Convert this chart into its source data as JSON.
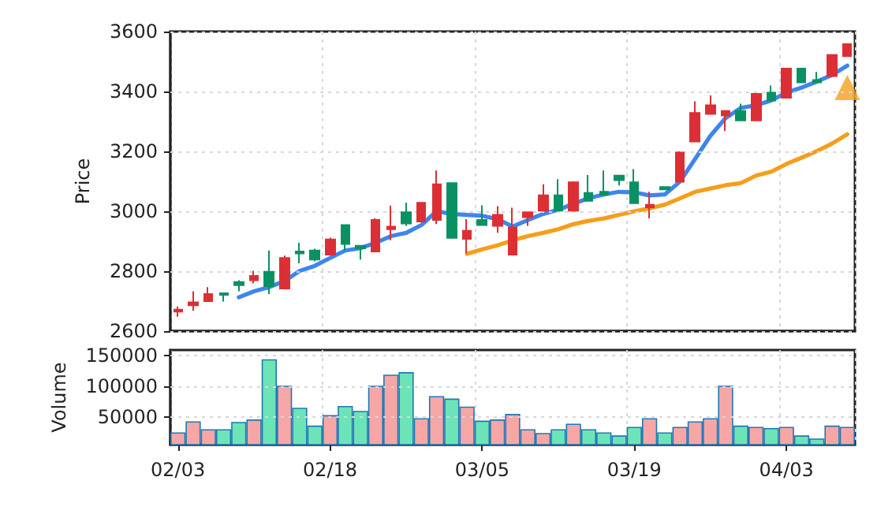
{
  "chart_data": [
    {
      "type": "candlestick",
      "ylabel": "Price",
      "ylim": [
        2600,
        3600
      ],
      "yticks": [
        2600,
        2800,
        3000,
        3200,
        3400,
        3600
      ],
      "grid": true,
      "tick_labels": "y",
      "categories": [
        null,
        null,
        null,
        null,
        null,
        null,
        null,
        null,
        null,
        null,
        null,
        null,
        null,
        null,
        null,
        null,
        null,
        null,
        null,
        null,
        null,
        null,
        null,
        null,
        null,
        null,
        null,
        null,
        null,
        null,
        null,
        null,
        null,
        null,
        null,
        null,
        null,
        null,
        null,
        null,
        null,
        null,
        null,
        null,
        null
      ],
      "ohlc": [
        [
          2672,
          2682,
          2648,
          2665
        ],
        [
          2696,
          2733,
          2668,
          2686
        ],
        [
          2724,
          2747,
          2699,
          2700
        ],
        [
          2721,
          2727,
          2699,
          2726
        ],
        [
          2753,
          2770,
          2733,
          2764
        ],
        [
          2784,
          2801,
          2759,
          2770
        ],
        [
          2750,
          2869,
          2724,
          2798
        ],
        [
          2844,
          2852,
          2742,
          2742
        ],
        [
          2859,
          2895,
          2826,
          2866
        ],
        [
          2839,
          2875,
          2833,
          2869
        ],
        [
          2906,
          2912,
          2855,
          2855
        ],
        [
          2891,
          2954,
          2869,
          2954
        ],
        [
          2876,
          2885,
          2839,
          2885
        ],
        [
          2971,
          2977,
          2866,
          2866
        ],
        [
          2949,
          3019,
          2903,
          2940
        ],
        [
          2959,
          3029,
          2951,
          2997
        ],
        [
          3028,
          3030,
          2966,
          2966
        ],
        [
          3090,
          3136,
          2957,
          2971
        ],
        [
          2911,
          3094,
          2911,
          3094
        ],
        [
          2935,
          2974,
          2860,
          2908
        ],
        [
          2954,
          3020,
          2954,
          2971
        ],
        [
          2988,
          3017,
          2928,
          2951
        ],
        [
          2946,
          3012,
          2855,
          2855
        ],
        [
          2997,
          2997,
          2951,
          2980
        ],
        [
          3053,
          3090,
          3002,
          3002
        ],
        [
          3002,
          3107,
          3002,
          3053
        ],
        [
          3097,
          3100,
          3002,
          3002
        ],
        [
          3035,
          3121,
          3035,
          3061
        ],
        [
          3055,
          3136,
          3055,
          3065
        ],
        [
          3104,
          3119,
          3086,
          3119
        ],
        [
          3027,
          3141,
          3027,
          3097
        ],
        [
          3022,
          3065,
          2976,
          3013
        ],
        [
          3073,
          3081,
          3073,
          3081
        ],
        [
          3196,
          3200,
          3099,
          3099
        ],
        [
          3328,
          3367,
          3233,
          3233
        ],
        [
          3354,
          3387,
          3325,
          3325
        ],
        [
          3335,
          3335,
          3268,
          3320
        ],
        [
          3303,
          3359,
          3303,
          3335
        ],
        [
          3392,
          3392,
          3303,
          3303
        ],
        [
          3370,
          3420,
          3370,
          3396
        ],
        [
          3476,
          3476,
          3379,
          3379
        ],
        [
          3430,
          3476,
          3430,
          3476
        ],
        [
          3430,
          3465,
          3430,
          3438
        ],
        [
          3522,
          3522,
          3451,
          3451
        ],
        [
          3558,
          3558,
          3518,
          3518
        ]
      ],
      "colors": [
        "#dc2f35",
        "#dc2f35",
        "#dc2f35",
        "#0a9163",
        "#0a9163",
        "#dc2f35",
        "#0a9163",
        "#dc2f35",
        "#0a9163",
        "#0a9163",
        "#dc2f35",
        "#0a9163",
        "#0a9163",
        "#dc2f35",
        "#dc2f35",
        "#0a9163",
        "#dc2f35",
        "#dc2f35",
        "#0a9163",
        "#dc2f35",
        "#0a9163",
        "#dc2f35",
        "#dc2f35",
        "#dc2f35",
        "#dc2f35",
        "#0a9163",
        "#dc2f35",
        "#0a9163",
        "#0a9163",
        "#0a9163",
        "#0a9163",
        "#dc2f35",
        "#0a9163",
        "#dc2f35",
        "#dc2f35",
        "#dc2f35",
        "#dc2f35",
        "#0a9163",
        "#dc2f35",
        "#0a9163",
        "#dc2f35",
        "#0a9163",
        "#0a9163",
        "#dc2f35",
        "#dc2f35"
      ],
      "series": [
        {
          "type": "line",
          "color": "#3d85f0",
          "values": [
            null,
            null,
            null,
            null,
            2713,
            2733,
            2747,
            2767,
            2801,
            2818,
            2844,
            2869,
            2877,
            2895,
            2917,
            2928,
            2954,
            3000,
            2991,
            2988,
            2985,
            2974,
            2949,
            2971,
            2991,
            3005,
            3025,
            3044,
            3056,
            3065,
            3063,
            3053,
            3056,
            3099,
            3175,
            3252,
            3311,
            3345,
            3354,
            3370,
            3396,
            3413,
            3433,
            3455,
            3486
          ]
        },
        {
          "type": "line",
          "color": "#f59e1a",
          "values": [
            null,
            null,
            null,
            null,
            null,
            null,
            null,
            null,
            null,
            null,
            null,
            null,
            null,
            null,
            null,
            null,
            null,
            null,
            null,
            2858,
            2873,
            2886,
            2903,
            2917,
            2928,
            2940,
            2957,
            2968,
            2976,
            2988,
            3000,
            3010,
            3022,
            3043,
            3065,
            3076,
            3087,
            3094,
            3119,
            3132,
            3158,
            3179,
            3201,
            3226,
            3257
          ]
        },
        {
          "type": "scatter",
          "marker": "triangle",
          "color": "#f5a01a",
          "values": [
            null,
            null,
            null,
            null,
            null,
            null,
            null,
            null,
            null,
            null,
            null,
            null,
            null,
            null,
            null,
            null,
            null,
            null,
            null,
            null,
            null,
            null,
            null,
            null,
            null,
            null,
            null,
            null,
            null,
            null,
            null,
            null,
            null,
            null,
            null,
            null,
            null,
            null,
            null,
            null,
            null,
            null,
            null,
            null,
            3413
          ]
        }
      ]
    },
    {
      "type": "bar",
      "ylabel": "Volume",
      "ylim": [
        5000,
        159000
      ],
      "yticks": [
        50000,
        100000,
        150000
      ],
      "grid": true,
      "categories": [
        "02/03",
        null,
        null,
        null,
        null,
        null,
        null,
        null,
        null,
        null,
        "02/18",
        null,
        null,
        null,
        null,
        null,
        null,
        null,
        null,
        null,
        "03/05",
        null,
        null,
        null,
        null,
        null,
        null,
        null,
        null,
        null,
        "03/19",
        null,
        null,
        null,
        null,
        null,
        null,
        null,
        null,
        null,
        "04/03",
        null,
        null,
        null,
        null
      ],
      "values": [
        25000,
        43000,
        30000,
        30000,
        42000,
        46000,
        144000,
        101000,
        65000,
        36000,
        53000,
        68000,
        60000,
        101000,
        119000,
        123000,
        48000,
        84000,
        80000,
        67000,
        44000,
        46000,
        55000,
        30000,
        24000,
        30000,
        39000,
        30000,
        25000,
        20000,
        34000,
        48000,
        25000,
        34000,
        43000,
        48000,
        101000,
        36000,
        34000,
        32000,
        34000,
        20000,
        15000,
        36000,
        34000
      ],
      "colors": [
        "#f7a6a6",
        "#f7a6a6",
        "#f7a6a6",
        "#6de4b8",
        "#6de4b8",
        "#f7a6a6",
        "#6de4b8",
        "#f7a6a6",
        "#6de4b8",
        "#6de4b8",
        "#f7a6a6",
        "#6de4b8",
        "#6de4b8",
        "#f7a6a6",
        "#f7a6a6",
        "#6de4b8",
        "#f7a6a6",
        "#f7a6a6",
        "#6de4b8",
        "#f7a6a6",
        "#6de4b8",
        "#f7a6a6",
        "#f7a6a6",
        "#f7a6a6",
        "#f7a6a6",
        "#6de4b8",
        "#f7a6a6",
        "#6de4b8",
        "#6de4b8",
        "#6de4b8",
        "#6de4b8",
        "#f7a6a6",
        "#6de4b8",
        "#f7a6a6",
        "#f7a6a6",
        "#f7a6a6",
        "#f7a6a6",
        "#6de4b8",
        "#f7a6a6",
        "#6de4b8",
        "#f7a6a6",
        "#6de4b8",
        "#6de4b8",
        "#f7a6a6",
        "#f7a6a6"
      ]
    }
  ]
}
